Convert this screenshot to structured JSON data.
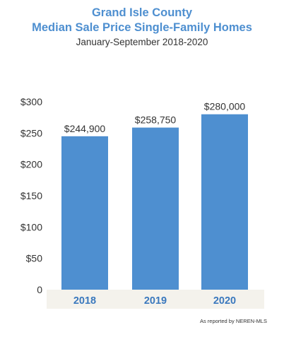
{
  "chart_data": {
    "type": "bar",
    "title": "Grand Isle County",
    "title_line2": "Median Sale Price Single-Family Homes",
    "subtitle": "January-September 2018-2020",
    "categories": [
      "2018",
      "2019",
      "2020"
    ],
    "values": [
      244900,
      258750,
      280000
    ],
    "data_labels": [
      "$244,900",
      "$258,750",
      "$280,000"
    ],
    "y_ticks": [
      0,
      50000,
      100000,
      150000,
      200000,
      250000,
      300000
    ],
    "y_tick_labels": [
      "0",
      "$50",
      "$100",
      "$150",
      "$200",
      "$250",
      "$300"
    ],
    "ylim": [
      0,
      300000
    ],
    "xlabel": "",
    "ylabel": "",
    "grid": false,
    "colors": {
      "bar": "#4e8fd0",
      "category_label": "#3a78bd",
      "title": "#4e8fd0",
      "axis_band": "#f4f2ec"
    }
  },
  "source_note": "As reported by NEREN-MLS"
}
